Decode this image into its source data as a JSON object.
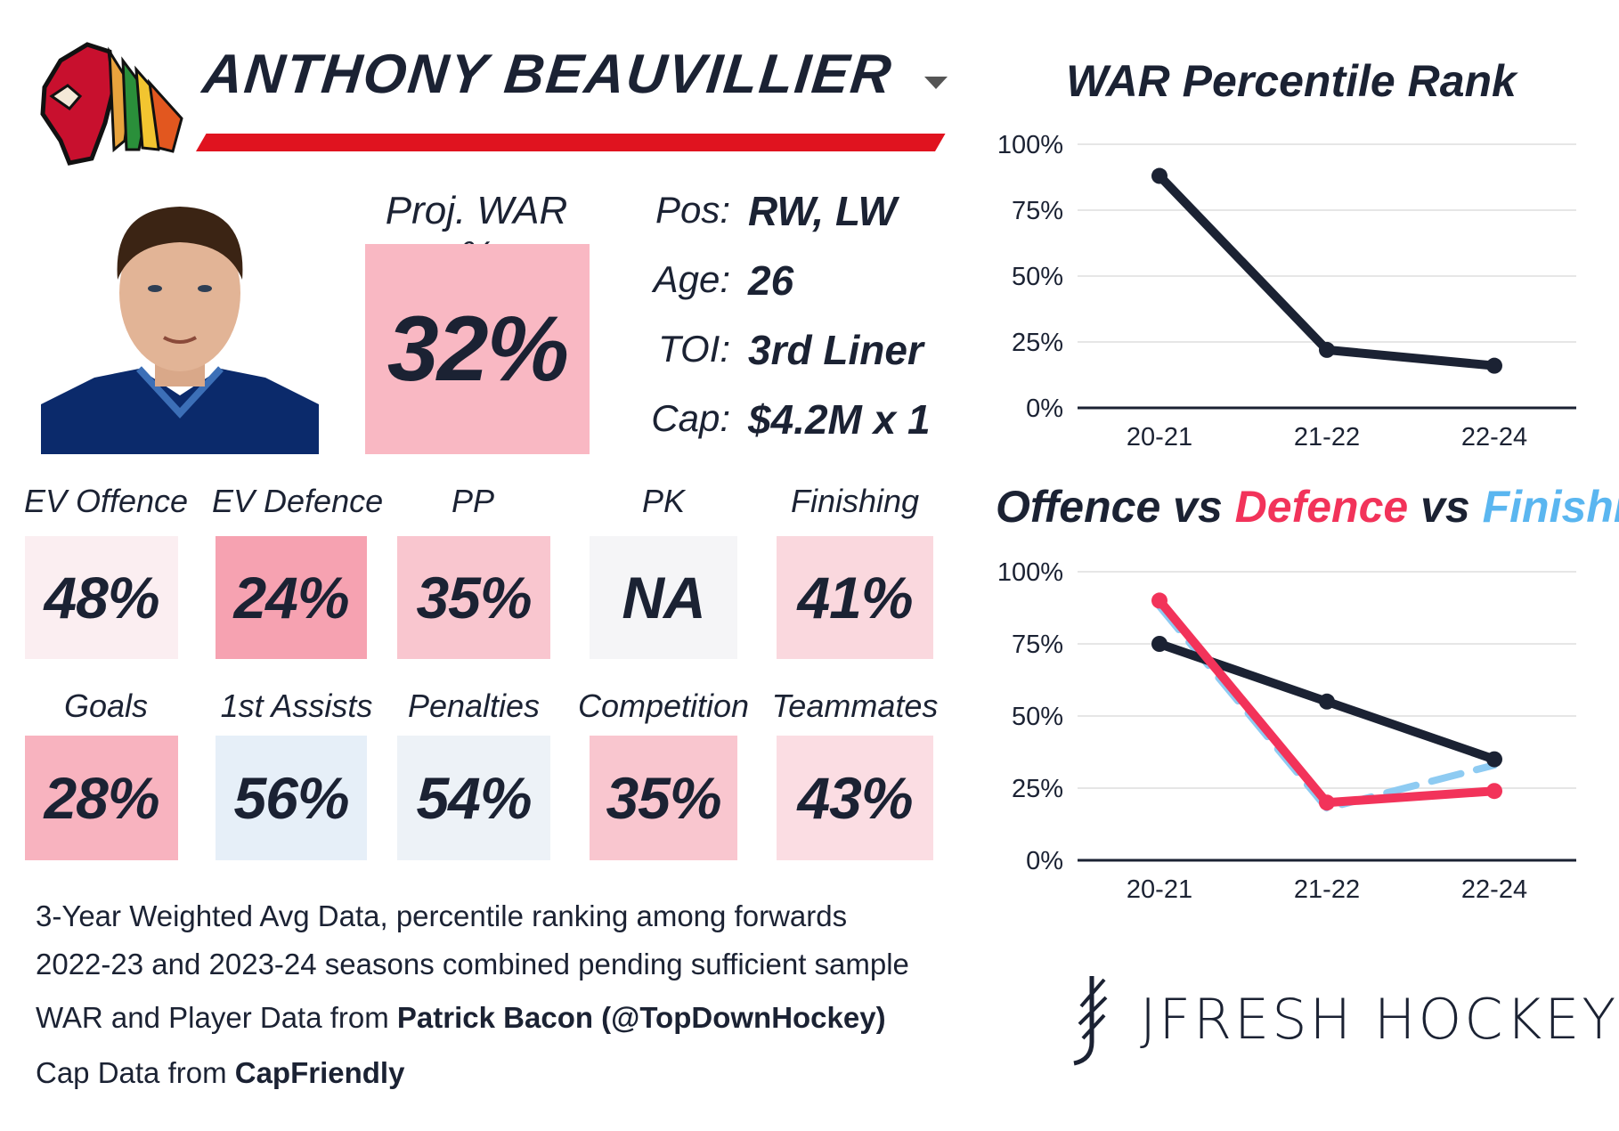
{
  "header": {
    "player_name": "ANTHONY BEAUVILLIER",
    "logo_icon": "chicago-blackhawks-logo-icon",
    "dropdown_icon": "chevron-down-icon"
  },
  "proj_war": {
    "label": "Proj. WAR %",
    "value": "32%"
  },
  "info": [
    {
      "label": "Pos:",
      "value": "RW, LW"
    },
    {
      "label": "Age:",
      "value": "26"
    },
    {
      "label": "TOI:",
      "value": "3rd Liner"
    },
    {
      "label": "Cap:",
      "value": "$4.2M x 1"
    }
  ],
  "metrics_row1": [
    {
      "label": "EV Offence",
      "value": "48%",
      "color": "#fbeef1"
    },
    {
      "label": "EV Defence",
      "value": "24%",
      "color": "#f6a2b1"
    },
    {
      "label": "PP",
      "value": "35%",
      "color": "#f9c6cf"
    },
    {
      "label": "PK",
      "value": "NA",
      "color": "#f5f5f7"
    },
    {
      "label": "Finishing",
      "value": "41%",
      "color": "#fad8de"
    }
  ],
  "metrics_row2": [
    {
      "label": "Goals",
      "value": "28%",
      "color": "#f8b3bf"
    },
    {
      "label": "1st Assists",
      "value": "56%",
      "color": "#e6eff8"
    },
    {
      "label": "Penalties",
      "value": "54%",
      "color": "#edf2f7"
    },
    {
      "label": "Competition",
      "value": "35%",
      "color": "#f9c6cf"
    },
    {
      "label": "Teammates",
      "value": "43%",
      "color": "#fbdde3"
    }
  ],
  "notes": {
    "line1": "3-Year Weighted Avg Data, percentile ranking among forwards",
    "line2": "2022-23 and 2023-24 seasons combined pending sufficient sample",
    "line3_prefix": "WAR and Player Data from ",
    "line3_bold": "Patrick Bacon (@TopDownHockey)",
    "line4_prefix": "Cap Data from ",
    "line4_bold": "CapFriendly"
  },
  "brand": {
    "text": "JFRESH HOCKEY",
    "icon": "jfresh-hockey-logo-icon"
  },
  "colors": {
    "dark": "#1b2233",
    "red": "#f2335a",
    "blue": "#8ecbf2",
    "accent_red": "#e0131f"
  },
  "chart_data": [
    {
      "type": "line",
      "title": "WAR Percentile Rank",
      "categories": [
        "20-21",
        "21-22",
        "22-24"
      ],
      "series": [
        {
          "name": "WAR",
          "values": [
            88,
            22,
            16
          ]
        }
      ],
      "ylim": [
        0,
        100
      ],
      "yticks": [
        "0%",
        "25%",
        "50%",
        "75%",
        "100%"
      ],
      "xlabel": "",
      "ylabel": ""
    },
    {
      "type": "line",
      "title": "Offence vs Defence vs Finishing",
      "title_parts": [
        "Offence",
        " vs ",
        "Defence",
        " vs ",
        "Finishing"
      ],
      "categories": [
        "20-21",
        "21-22",
        "22-24"
      ],
      "series": [
        {
          "name": "Offence",
          "values": [
            75,
            55,
            35
          ],
          "color": "#1b2233",
          "dash": false
        },
        {
          "name": "Defence",
          "values": [
            90,
            20,
            24
          ],
          "color": "#f2335a",
          "dash": false
        },
        {
          "name": "Finishing",
          "values": [
            88,
            18,
            33
          ],
          "color": "#8ecbf2",
          "dash": true
        }
      ],
      "ylim": [
        0,
        100
      ],
      "yticks": [
        "0%",
        "25%",
        "50%",
        "75%",
        "100%"
      ],
      "xlabel": "",
      "ylabel": ""
    }
  ]
}
